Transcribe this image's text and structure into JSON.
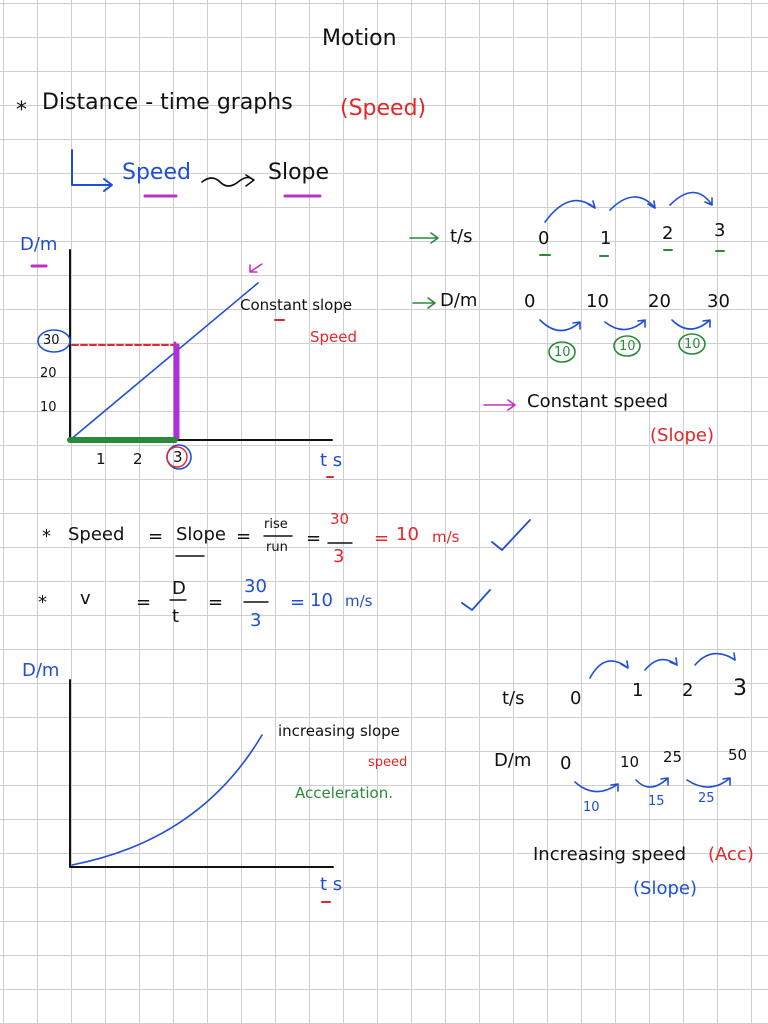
{
  "title": "Motion",
  "heading": {
    "bullet": "*",
    "text": "Distance - time graphs",
    "note": "(Speed)"
  },
  "subheading": {
    "from": "Speed",
    "to": "Slope"
  },
  "graph1": {
    "y_label": "D/m",
    "x_label": "t s",
    "y_ticks": [
      "30",
      "20",
      "10"
    ],
    "x_ticks": [
      "1",
      "2",
      "3"
    ],
    "annotation": "Constant slope",
    "annotation_note": "Speed"
  },
  "table1": {
    "t_label": "t/s",
    "times": [
      "0",
      "1",
      "2",
      "3"
    ],
    "d_label": "D/m",
    "distances": [
      "0",
      "10",
      "20",
      "30"
    ],
    "differences": [
      "10",
      "10",
      "10"
    ],
    "conclusion": "Constant speed",
    "conclusion_note": "(Slope)"
  },
  "equation1": [
    "*",
    "Speed",
    "=",
    "Slope",
    "=",
    {
      "num": "rise",
      "den": "run"
    },
    "=",
    {
      "num": "30",
      "den": "3"
    },
    "=",
    "10",
    "m/s"
  ],
  "equation2": [
    "*",
    "v",
    "=",
    {
      "num": "D",
      "den": "t"
    },
    "=",
    {
      "num": "30",
      "den": "3"
    },
    "=",
    "10",
    "m/s"
  ],
  "graph2": {
    "y_label": "D/m",
    "x_label": "t s",
    "annotation": "increasing slope",
    "annotation_note": "speed",
    "annotation_extra": "Acceleration."
  },
  "table2": {
    "t_label": "t/s",
    "times": [
      "0",
      "1",
      "2",
      "3"
    ],
    "d_label": "D/m",
    "distances": [
      "0",
      "10",
      "25",
      "50"
    ],
    "differences": [
      "10",
      "15",
      "25"
    ],
    "conclusion": "Increasing speed",
    "conclusion_note": "(Acc)",
    "conclusion_extra": "(Slope)"
  }
}
